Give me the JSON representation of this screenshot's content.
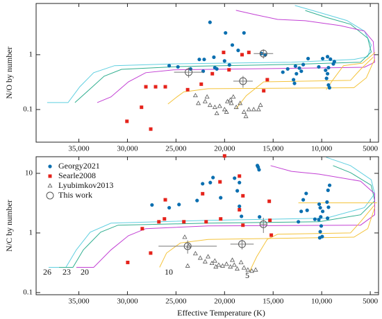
{
  "chart_data": [
    {
      "type": "scatter",
      "ylabel": "N/O by number",
      "y_scale": "log",
      "xlim": [
        39400,
        4150
      ],
      "xticks": [
        {
          "value": 35000,
          "label": "35,000"
        },
        {
          "value": 30000,
          "label": "30,000"
        },
        {
          "value": 25000,
          "label": "25,000"
        },
        {
          "value": 20000,
          "label": "20,000"
        },
        {
          "value": 15000,
          "label": "15,000"
        },
        {
          "value": 10000,
          "label": "10,000"
        },
        5000
      ],
      "ylim": [
        0.0254,
        8.6
      ],
      "yticks": [
        0.1,
        1
      ],
      "series": [
        {
          "color": "#0b6fb0",
          "marker": "dot",
          "x": [
            21500,
            19900,
            18000,
            19200,
            18600,
            22600,
            22100,
            21100,
            20000,
            19500,
            21000,
            20800,
            22200,
            23500,
            25700,
            24800,
            16200,
            15800,
            12700,
            12300,
            11900,
            12100,
            12600,
            12900,
            12800,
            11400,
            10300,
            9900,
            9400,
            9100,
            8700,
            8800,
            9300,
            9600,
            9400,
            9500,
            9300,
            9200,
            14000,
            13500
          ],
          "values": [
            3.9,
            2.5,
            2.5,
            1.5,
            1.2,
            0.82,
            0.82,
            0.9,
            0.77,
            0.65,
            0.58,
            0.55,
            0.5,
            0.55,
            0.63,
            0.6,
            1.05,
            1.0,
            0.62,
            0.57,
            0.66,
            0.5,
            0.45,
            0.35,
            0.3,
            0.85,
            0.6,
            0.85,
            0.92,
            0.83,
            0.75,
            0.68,
            0.58,
            0.52,
            0.45,
            0.37,
            0.28,
            0.25,
            0.48,
            0.55
          ]
        },
        {
          "color": "#e5231b",
          "marker": "square",
          "x": [
            30050,
            28550,
            27600,
            28100,
            27100,
            26100,
            23800,
            22400,
            21260,
            20100,
            17500,
            19540,
            15600,
            15970,
            18200
          ],
          "values": [
            0.061,
            0.11,
            0.044,
            0.26,
            0.26,
            0.26,
            0.23,
            0.29,
            0.45,
            1.1,
            1.1,
            0.53,
            0.35,
            0.22,
            1.0
          ]
        },
        {
          "color": "#555555",
          "marker": "triangle",
          "x": [
            22700,
            22000,
            21500,
            21000,
            20500,
            20000,
            19700,
            19400,
            19300,
            19100,
            18800,
            18400,
            18000,
            17500,
            17000,
            16500,
            16300,
            20800,
            19800,
            21800,
            23000,
            17800
          ],
          "values": [
            0.13,
            0.14,
            0.12,
            0.11,
            0.115,
            0.1,
            0.14,
            0.15,
            0.13,
            0.17,
            0.11,
            0.13,
            0.09,
            0.1,
            0.1,
            0.1,
            0.12,
            0.085,
            0.09,
            0.17,
            0.18,
            0.075
          ]
        },
        {
          "color": "#555555",
          "marker": "circle",
          "x": [
            23700,
            18100,
            16000
          ],
          "values": [
            0.48,
            0.33,
            1.05
          ],
          "xerr": [
            1500,
            1000,
            1000
          ],
          "yerr": [
            0.1,
            0.08,
            0.2
          ]
        }
      ],
      "tracks": [
        {
          "color": "#5fcfe0",
          "x": [
            38260,
            36110,
            34900,
            33470,
            31330,
            25260,
            13110,
            6690,
            5260,
            4900,
            5610,
            7400,
            10260,
            12760
          ],
          "values": [
            0.134,
            0.134,
            0.26,
            0.47,
            0.63,
            0.68,
            0.73,
            0.82,
            0.92,
            1.5,
            2.7,
            4.2,
            5.9,
            7.9
          ]
        },
        {
          "color": "#2fae8f",
          "x": [
            35400,
            33970,
            32400,
            30610,
            24540,
            13110,
            6000,
            4900,
            5260,
            7040,
            9540,
            11690
          ],
          "values": [
            0.134,
            0.226,
            0.405,
            0.54,
            0.61,
            0.665,
            0.73,
            1.12,
            2.0,
            3.6,
            4.8,
            6.4
          ]
        },
        {
          "color": "#c23fd4",
          "x": [
            33110,
            31690,
            29900,
            28110,
            25260,
            14540,
            5610,
            4540,
            4690,
            5610,
            8110,
            11690,
            14540,
            16690,
            18830
          ],
          "values": [
            0.134,
            0.17,
            0.32,
            0.47,
            0.53,
            0.56,
            0.59,
            0.73,
            1.74,
            2.7,
            3.4,
            4.17,
            4.4,
            5.3,
            6.45
          ]
        },
        {
          "color": "#f4c33a",
          "x": [
            25830,
            24900,
            24190,
            21690,
            6690,
            5400,
            4540
          ],
          "values": [
            0.126,
            0.17,
            0.21,
            0.24,
            0.25,
            0.38,
            0.84
          ]
        },
        {
          "color": "#f4c33a",
          "x": [
            18830,
            17760,
            15970,
            7040,
            6000,
            4700
          ],
          "values": [
            0.103,
            0.18,
            0.32,
            0.34,
            0.54,
            0.9
          ]
        },
        {
          "color": "#f4c33a",
          "x": [
            9540,
            8830,
            7760,
            5800,
            4500
          ],
          "values": [
            0.23,
            0.35,
            0.63,
            0.7,
            1.1
          ]
        }
      ]
    },
    {
      "type": "scatter",
      "ylabel": "N/C by number",
      "xlabel": "Effective Temperature (K)",
      "y_scale": "log",
      "legend": "upper left",
      "xlim": [
        39400,
        4150
      ],
      "xticks": [
        {
          "value": 35000,
          "label": "35,000"
        },
        {
          "value": 30000,
          "label": "30,000"
        },
        {
          "value": 25000,
          "label": "25,000"
        },
        {
          "value": 20000,
          "label": "20,000"
        },
        {
          "value": 15000,
          "label": "15,000"
        },
        {
          "value": 10000,
          "label": "10,000"
        },
        5000
      ],
      "ylim": [
        0.092,
        19
      ],
      "yticks": [
        0.1,
        1,
        10
      ],
      "series": [
        {
          "name": "Georgy2021",
          "color": "#0b6fb0",
          "marker": "dot",
          "x": [
            18970,
            18470,
            21190,
            22260,
            21470,
            24690,
            25700,
            27470,
            22830,
            20400,
            18690,
            16540,
            16450,
            16620,
            18470,
            18260,
            12110,
            11900,
            11600,
            11500,
            10700,
            10257,
            10150,
            10100,
            10050,
            9950,
            9900,
            9400,
            9450,
            9350,
            9300,
            9186,
            10300,
            10200,
            10150,
            12400,
            16400
          ],
          "values": [
            8.3,
            7.0,
            8.5,
            6.7,
            7.0,
            3.0,
            2.65,
            2.95,
            3.5,
            3.9,
            5.1,
            12.7,
            11.5,
            13.5,
            2.8,
            1.9,
            2.3,
            3.6,
            4.6,
            2.4,
            1.7,
            3.04,
            2.65,
            1.86,
            1.31,
            0.87,
            2.3,
            1.77,
            3.3,
            5.2,
            2.7,
            6.3,
            1.67,
            0.83,
            1.05,
            1.54,
            1.86
          ]
        },
        {
          "name": "Searle2008",
          "color": "#e5231b",
          "marker": "square",
          "x": [
            20000,
            18470,
            20470,
            26100,
            22260,
            18110,
            18470,
            15400,
            26190,
            26760,
            28470,
            29970,
            27610,
            21900,
            24190,
            20400,
            18110,
            15330,
            15190
          ],
          "values": [
            19.6,
            9,
            7.2,
            3.6,
            4.55,
            4.2,
            2.45,
            3.4,
            1.72,
            1.54,
            1.18,
            0.32,
            0.46,
            1.54,
            1.54,
            1.72,
            1.35,
            1.63,
            0.92
          ]
        },
        {
          "name": "Lyubimkov2013",
          "color": "#555555",
          "marker": "triangle",
          "x": [
            24100,
            23700,
            23000,
            22500,
            22000,
            21700,
            21300,
            21000,
            20600,
            20200,
            19800,
            19400,
            19000,
            18700,
            18300,
            18000,
            17600,
            17200,
            16800,
            20900,
            23800,
            19200
          ],
          "values": [
            0.85,
            0.6,
            0.45,
            0.38,
            0.33,
            0.4,
            0.31,
            0.34,
            0.29,
            0.28,
            0.3,
            0.27,
            0.29,
            0.25,
            0.32,
            0.26,
            0.24,
            0.23,
            0.24,
            0.27,
            0.28,
            0.35
          ]
        },
        {
          "name": "This work",
          "color": "#555555",
          "marker": "circle",
          "x": [
            23800,
            18200,
            16000
          ],
          "values": [
            0.6,
            0.65,
            1.4
          ],
          "xerr": [
            3000,
            1200,
            300
          ],
          "yerr": [
            0.15,
            0.12,
            0.4
          ]
        }
      ],
      "tracks": [
        {
          "color": "#5fcfe0",
          "x": [
            38110,
            36330,
            35260,
            33830,
            31690,
            21690,
            9540,
            5610,
            4540,
            4900,
            7040,
            9540
          ],
          "values": [
            0.265,
            0.265,
            0.52,
            1.03,
            1.46,
            1.63,
            1.77,
            2.65,
            4.55,
            7.8,
            13.5,
            18.6
          ]
        },
        {
          "color": "#2fae8f",
          "x": [
            37040,
            35610,
            34540,
            32760,
            30970,
            21690,
            10260,
            6000,
            4540,
            4900,
            7040,
            8830
          ],
          "values": [
            0.265,
            0.265,
            0.52,
            1.03,
            1.35,
            1.46,
            1.54,
            2.02,
            3.47,
            6.3,
            10.3,
            13.5
          ]
        },
        {
          "color": "#c23fd4",
          "x": [
            35260,
            33470,
            31690,
            29900,
            28110,
            21690,
            6000,
            4540,
            4540,
            6000,
            10260,
            13110,
            15260
          ],
          "values": [
            0.265,
            0.265,
            0.52,
            0.9,
            1.18,
            1.31,
            1.35,
            2.02,
            4.55,
            7.4,
            9.7,
            10.8,
            13.5
          ]
        },
        {
          "color": "#f4c33a",
          "x": [
            26690,
            25970,
            24540,
            21690,
            6690,
            5260,
            4540
          ],
          "values": [
            0.265,
            0.46,
            0.68,
            0.78,
            0.85,
            1.18,
            2.65
          ]
        },
        {
          "color": "#f4c33a",
          "x": [
            17400,
            16690,
            15610,
            14540,
            7040,
            6000,
            4600
          ],
          "values": [
            0.23,
            0.4,
            0.78,
            0.95,
            1.0,
            1.54,
            2.9
          ]
        },
        {
          "color": "#f4c33a",
          "x": [
            12400,
            4300
          ],
          "values": [
            3.2,
            3.2
          ]
        }
      ],
      "annotations": [
        "26",
        "23",
        "20",
        "10",
        "5"
      ]
    }
  ]
}
